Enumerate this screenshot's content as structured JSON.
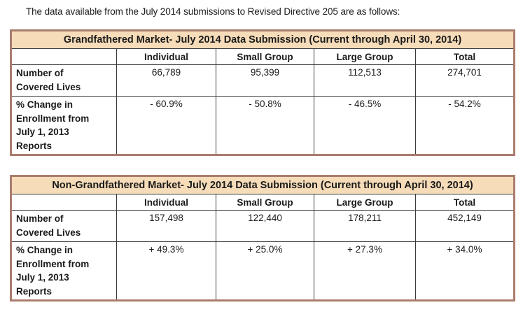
{
  "page": {
    "intro_text": "The data available from the July 2014 submissions to Revised Directive 205 are as follows:"
  },
  "colors": {
    "outer_border": "#a97d6e",
    "title_bg": "#f6dcb9",
    "grid_line": "#3a3a3a"
  },
  "columns": [
    "",
    "Individual",
    "Small Group",
    "Large Group",
    "Total"
  ],
  "tables": [
    {
      "title": "Grandfathered Market- July 2014 Data Submission (Current through April 30, 2014)",
      "rows": [
        {
          "label": "Number of\nCovered Lives",
          "values": [
            "66,789",
            "95,399",
            "112,513",
            "274,701"
          ]
        },
        {
          "label": "% Change in\nEnrollment from\nJuly 1, 2013\nReports",
          "values": [
            "- 60.9%",
            "- 50.8%",
            "- 46.5%",
            "- 54.2%"
          ]
        }
      ]
    },
    {
      "title": "Non-Grandfathered Market- July 2014 Data Submission (Current through April 30, 2014)",
      "rows": [
        {
          "label": "Number of\nCovered Lives",
          "values": [
            "157,498",
            "122,440",
            "178,211",
            "452,149"
          ]
        },
        {
          "label": "% Change in\nEnrollment from\nJuly 1, 2013\nReports",
          "values": [
            "+ 49.3%",
            "+ 25.0%",
            "+ 27.3%",
            "+ 34.0%"
          ]
        }
      ]
    }
  ]
}
